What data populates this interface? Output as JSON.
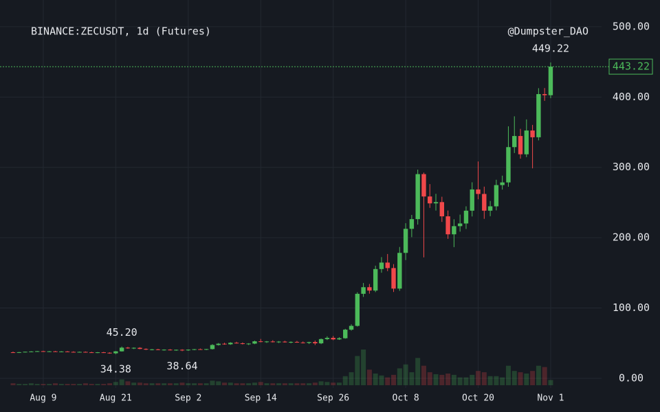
{
  "chart_data": {
    "type": "candlestick",
    "title": "BINANCE:ZECUSDT, 1d (Futures)",
    "watermark": "@Dumpster_DAO",
    "up_color": "#4cba5a",
    "down_color": "#f0484a",
    "categories": [
      null,
      null,
      null,
      null,
      null,
      "Aug 9",
      null,
      null,
      null,
      null,
      null,
      null,
      null,
      null,
      null,
      null,
      null,
      "Aug 21",
      null,
      null,
      null,
      null,
      null,
      null,
      null,
      null,
      null,
      null,
      null,
      "Sep 2",
      null,
      null,
      null,
      null,
      null,
      null,
      null,
      null,
      null,
      null,
      null,
      "Sep 14",
      null,
      null,
      null,
      null,
      null,
      null,
      null,
      null,
      null,
      null,
      null,
      "Sep 26",
      null,
      null,
      null,
      null,
      null,
      null,
      null,
      null,
      null,
      null,
      null,
      "Oct 8",
      null,
      null,
      null,
      null,
      null,
      null,
      null,
      null,
      null,
      null,
      null,
      "Oct 20",
      null,
      null,
      null,
      null,
      null,
      null,
      null,
      null,
      null,
      null,
      null,
      "Nov 1"
    ],
    "candles": [
      [
        37,
        38,
        36.5,
        36.8
      ],
      [
        36.8,
        37.5,
        36,
        37.2
      ],
      [
        37.2,
        38,
        36.8,
        37.8
      ],
      [
        37.8,
        38.6,
        37.2,
        38.2
      ],
      [
        38.2,
        39,
        37.6,
        38.6
      ],
      [
        38.6,
        39.2,
        37.8,
        38
      ],
      [
        38,
        38.8,
        37.4,
        38.4
      ],
      [
        38.4,
        39,
        37.6,
        37.8
      ],
      [
        37.8,
        38.6,
        37.2,
        38.2
      ],
      [
        38.2,
        38.8,
        37.4,
        37.6
      ],
      [
        37.6,
        38.4,
        36.8,
        37.2
      ],
      [
        37.2,
        38,
        36.6,
        37.6
      ],
      [
        37.6,
        38.2,
        36.8,
        37
      ],
      [
        37,
        37.8,
        36.2,
        36.6
      ],
      [
        36.6,
        37.4,
        35.8,
        37
      ],
      [
        37,
        37.6,
        36,
        36.4
      ],
      [
        36.4,
        37,
        35,
        35.6
      ],
      [
        35.6,
        38.8,
        34.38,
        38.4
      ],
      [
        38.4,
        45.2,
        38,
        43.6
      ],
      [
        43.6,
        44.8,
        42,
        42.8
      ],
      [
        42.8,
        44,
        41.6,
        43.4
      ],
      [
        43.4,
        44.2,
        41.4,
        41.8
      ],
      [
        41.8,
        42.6,
        40.2,
        40.8
      ],
      [
        40.8,
        41.8,
        39.8,
        41.2
      ],
      [
        41.2,
        42,
        40,
        40.4
      ],
      [
        40.4,
        41.2,
        39.4,
        40.8
      ],
      [
        40.8,
        41.6,
        39.6,
        40
      ],
      [
        40,
        41,
        39.2,
        40.6
      ],
      [
        40.6,
        41.4,
        38.64,
        39.8
      ],
      [
        39.8,
        41.2,
        39,
        40.8
      ],
      [
        40.8,
        41.6,
        40,
        41.4
      ],
      [
        41.4,
        42.4,
        40.6,
        40.8
      ],
      [
        40.8,
        41.8,
        40.2,
        41.6
      ],
      [
        41.6,
        48.6,
        41,
        47.4
      ],
      [
        47.4,
        50.2,
        46.6,
        49.2
      ],
      [
        49.2,
        50.6,
        47.8,
        48.4
      ],
      [
        48.4,
        51.4,
        47.6,
        50.6
      ],
      [
        50.6,
        52,
        49.4,
        49.8
      ],
      [
        49.8,
        51,
        48.2,
        48.8
      ],
      [
        48.8,
        50,
        47.4,
        49.4
      ],
      [
        49.4,
        53.6,
        48.6,
        52.6
      ],
      [
        52.6,
        56,
        51.2,
        51.8
      ],
      [
        51.8,
        53,
        50.4,
        52.4
      ],
      [
        52.4,
        54.2,
        51,
        51.6
      ],
      [
        51.6,
        53,
        50.2,
        52.2
      ],
      [
        52.2,
        53.4,
        50.8,
        51.2
      ],
      [
        51.2,
        52.6,
        49.8,
        51.8
      ],
      [
        51.8,
        53.2,
        50.6,
        51
      ],
      [
        51,
        52.4,
        49.6,
        50.4
      ],
      [
        50.4,
        52,
        48.8,
        51.6
      ],
      [
        51.6,
        53.8,
        47.4,
        49.8
      ],
      [
        49.8,
        56.6,
        48.6,
        55.8
      ],
      [
        55.8,
        59.8,
        54.4,
        57.6
      ],
      [
        57.6,
        60.2,
        54.2,
        55.4
      ],
      [
        55.4,
        58.4,
        54.6,
        57
      ],
      [
        57,
        70.4,
        56.4,
        69.2
      ],
      [
        69.2,
        76.8,
        67.8,
        74.6
      ],
      [
        74.6,
        122.4,
        73.6,
        120.2
      ],
      [
        120.2,
        135.6,
        115.8,
        129.6
      ],
      [
        129.6,
        134.2,
        120.4,
        124.8
      ],
      [
        124.8,
        160.2,
        122.6,
        155.4
      ],
      [
        155.4,
        172.4,
        150.2,
        164.6
      ],
      [
        164.6,
        176.8,
        152.4,
        156.8
      ],
      [
        156.8,
        162.4,
        122.8,
        127.6
      ],
      [
        127.6,
        186.8,
        124.4,
        178.4
      ],
      [
        178.4,
        220.6,
        168.2,
        212.6
      ],
      [
        212.6,
        232.4,
        200.8,
        226.4
      ],
      [
        226.4,
        296.8,
        218.6,
        290.4
      ],
      [
        290.4,
        292.6,
        172,
        258.6
      ],
      [
        258.6,
        276.2,
        242.4,
        248.8
      ],
      [
        248.8,
        262.4,
        238.6,
        250.6
      ],
      [
        250.6,
        258.2,
        222.4,
        230.4
      ],
      [
        230.4,
        238.6,
        198.4,
        204.8
      ],
      [
        204.8,
        226.2,
        186.6,
        216.4
      ],
      [
        216.4,
        232.8,
        208.6,
        220.2
      ],
      [
        220.2,
        244.6,
        212.4,
        238.4
      ],
      [
        238.4,
        278.8,
        230.2,
        268.6
      ],
      [
        268.6,
        308.4,
        254.6,
        262.2
      ],
      [
        262.2,
        272.6,
        226.8,
        238.4
      ],
      [
        238.4,
        252.2,
        230.6,
        244.6
      ],
      [
        244.6,
        282.4,
        238.8,
        274.8
      ],
      [
        274.8,
        288.2,
        268.4,
        278.6
      ],
      [
        278.6,
        358.4,
        272.4,
        328.8
      ],
      [
        328.8,
        372.6,
        320.4,
        344.6
      ],
      [
        344.6,
        354.8,
        312.4,
        318.6
      ],
      [
        318.6,
        368.2,
        314.6,
        352.4
      ],
      [
        352.4,
        360.4,
        298.6,
        342.8
      ],
      [
        342.8,
        412.6,
        338.4,
        404.2
      ],
      [
        404.2,
        412.8,
        394.6,
        402.6
      ],
      [
        402.6,
        449.22,
        398.4,
        443.22
      ]
    ],
    "volume": [
      3,
      2,
      2,
      3,
      2,
      2,
      2,
      3,
      2,
      2,
      2,
      2,
      3,
      2,
      2,
      2,
      3,
      5,
      9,
      6,
      4,
      4,
      3,
      3,
      3,
      3,
      3,
      3,
      4,
      3,
      3,
      3,
      3,
      7,
      6,
      4,
      4,
      3,
      3,
      3,
      4,
      5,
      3,
      3,
      3,
      3,
      3,
      3,
      3,
      3,
      4,
      6,
      5,
      4,
      4,
      14,
      20,
      45,
      55,
      24,
      18,
      15,
      12,
      16,
      26,
      32,
      20,
      42,
      30,
      20,
      17,
      16,
      18,
      16,
      12,
      12,
      16,
      22,
      20,
      14,
      14,
      12,
      30,
      22,
      20,
      18,
      22,
      30,
      28,
      8
    ],
    "ylim": [
      -13.7,
      538
    ],
    "yticks": [
      {
        "value": 0,
        "label": "0.00"
      },
      {
        "value": 100,
        "label": "100.00"
      },
      {
        "value": 200,
        "label": "200.00"
      },
      {
        "value": 300,
        "label": "300.00"
      },
      {
        "value": 400,
        "label": "400.00"
      },
      {
        "value": 500,
        "label": "500.00"
      }
    ],
    "annotations": [
      {
        "value": 45.2,
        "label": "45.20"
      },
      {
        "value": 34.38,
        "label": "34.38"
      },
      {
        "value": 38.64,
        "label": "38.64"
      },
      {
        "value": 449.22,
        "label": "449.22"
      }
    ],
    "last_price": {
      "value": 443.22,
      "label": "443.22"
    },
    "grid": true
  }
}
